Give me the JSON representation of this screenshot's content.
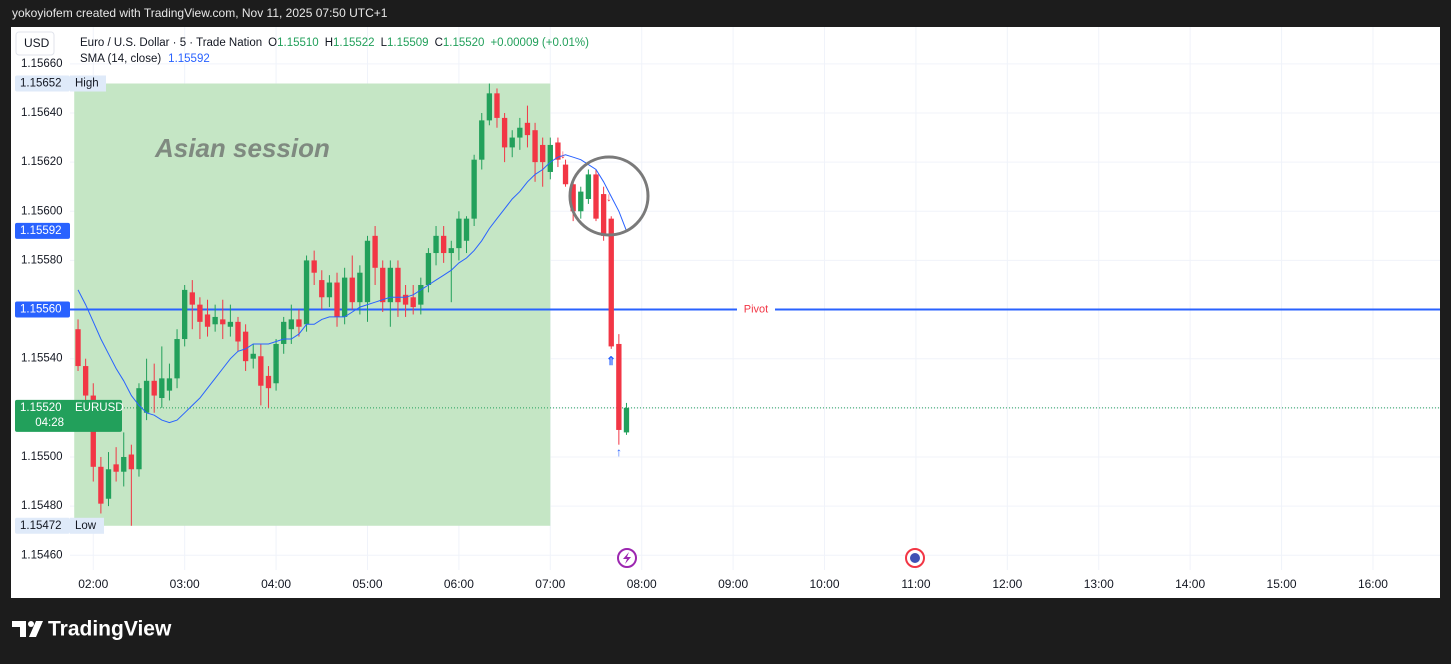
{
  "header": {
    "credit": "yokoyiofem created with TradingView.com, Nov 11, 2025 07:50 UTC+1",
    "logo": "TradingView"
  },
  "chart_data": {
    "type": "candlestick",
    "currency": "USD",
    "title": "Euro / U.S. Dollar · 5 · Trade Nation",
    "legend_values": [
      {
        "key": "O",
        "value": 1.1551,
        "label": "1.15510"
      },
      {
        "key": "H",
        "value": 1.15522,
        "label": "1.15522"
      },
      {
        "key": "L",
        "value": 1.15509,
        "label": "1.15509"
      },
      {
        "key": "C",
        "value": 1.1552,
        "label": "1.15520"
      }
    ],
    "change": "+0.00009 (+0.01%)",
    "up_color": "#22a05b",
    "down_color": "#f23645",
    "x": [
      110,
      115,
      120,
      125,
      130,
      135,
      140,
      145,
      150,
      155,
      160,
      165,
      170,
      175,
      180,
      185,
      190,
      195,
      200,
      205,
      210,
      215,
      220,
      225,
      230,
      235,
      240,
      245,
      250,
      255,
      260,
      265,
      270,
      275,
      280,
      285,
      290,
      295,
      300,
      305,
      310,
      315,
      320,
      325,
      330,
      335,
      340,
      345,
      350,
      355,
      360,
      365,
      370,
      375,
      380,
      385,
      390,
      395,
      400,
      405,
      410,
      415,
      420,
      425,
      430,
      435,
      440,
      445,
      450,
      455,
      460,
      465,
      470
    ],
    "open": [
      1.15552,
      1.15537,
      1.15525,
      1.15496,
      1.15483,
      1.15497,
      1.15494,
      1.15501,
      1.15495,
      1.15518,
      1.15531,
      1.15524,
      1.15527,
      1.15532,
      1.15548,
      1.15567,
      1.15562,
      1.15558,
      1.15554,
      1.15556,
      1.15553,
      1.15555,
      1.15551,
      1.1554,
      1.15541,
      1.15533,
      1.1553,
      1.15546,
      1.15552,
      1.15556,
      1.15554,
      1.1558,
      1.15572,
      1.15565,
      1.15571,
      1.15557,
      1.15573,
      1.15563,
      1.15563,
      1.1559,
      1.15577,
      1.15563,
      1.15577,
      1.15566,
      1.15565,
      1.15562,
      1.1557,
      1.15583,
      1.1559,
      1.15583,
      1.15585,
      1.15588,
      1.15597,
      1.15621,
      1.15637,
      1.15648,
      1.15638,
      1.15626,
      1.1563,
      1.15636,
      1.15633,
      1.15627,
      1.15616,
      1.15628,
      1.15619,
      1.15611,
      1.156,
      1.15605,
      1.15615,
      1.15607,
      1.15597,
      1.15546,
      1.1551
    ],
    "high": [
      1.15556,
      1.1554,
      1.1553,
      1.155,
      1.15502,
      1.15504,
      1.1551,
      1.15505,
      1.1553,
      1.1554,
      1.15538,
      1.15545,
      1.15538,
      1.15552,
      1.1557,
      1.15572,
      1.15565,
      1.15564,
      1.15562,
      1.15564,
      1.15562,
      1.15557,
      1.15554,
      1.15546,
      1.15546,
      1.15537,
      1.15548,
      1.15557,
      1.15562,
      1.1556,
      1.15582,
      1.15584,
      1.15576,
      1.15574,
      1.15575,
      1.15577,
      1.15582,
      1.15578,
      1.1559,
      1.15594,
      1.1558,
      1.1558,
      1.1558,
      1.1557,
      1.1557,
      1.15573,
      1.15585,
      1.15594,
      1.15594,
      1.15588,
      1.156,
      1.15598,
      1.15623,
      1.1564,
      1.15652,
      1.1565,
      1.1564,
      1.15633,
      1.15638,
      1.15643,
      1.15636,
      1.1563,
      1.1563,
      1.1563,
      1.15621,
      1.15612,
      1.1561,
      1.15617,
      1.15617,
      1.1561,
      1.15598,
      1.1555,
      1.15522
    ],
    "low": [
      1.15535,
      1.1552,
      1.1549,
      1.15477,
      1.1548,
      1.1549,
      1.15488,
      1.15472,
      1.15492,
      1.15515,
      1.15518,
      1.1552,
      1.15523,
      1.15528,
      1.15545,
      1.15552,
      1.15548,
      1.15549,
      1.15551,
      1.15548,
      1.15549,
      1.15543,
      1.15535,
      1.15536,
      1.15521,
      1.1552,
      1.15527,
      1.15542,
      1.15546,
      1.15549,
      1.15551,
      1.1557,
      1.1556,
      1.15561,
      1.15553,
      1.15554,
      1.1556,
      1.15558,
      1.15555,
      1.1557,
      1.15559,
      1.15553,
      1.15557,
      1.15557,
      1.15558,
      1.15558,
      1.15567,
      1.15578,
      1.15579,
      1.15563,
      1.1558,
      1.15583,
      1.15594,
      1.15617,
      1.15635,
      1.15634,
      1.1562,
      1.15622,
      1.15625,
      1.15626,
      1.15612,
      1.1561,
      1.15613,
      1.15618,
      1.1561,
      1.15596,
      1.15597,
      1.15603,
      1.15596,
      1.15588,
      1.15544,
      1.15505,
      1.15509
    ],
    "close": [
      1.15537,
      1.15525,
      1.15496,
      1.15481,
      1.15495,
      1.15494,
      1.155,
      1.15495,
      1.15528,
      1.15531,
      1.15525,
      1.15532,
      1.15532,
      1.15548,
      1.15568,
      1.15562,
      1.15555,
      1.15553,
      1.15557,
      1.15554,
      1.15555,
      1.15547,
      1.15539,
      1.15542,
      1.15529,
      1.15528,
      1.15546,
      1.15555,
      1.15556,
      1.15553,
      1.1558,
      1.15575,
      1.15565,
      1.15571,
      1.15557,
      1.15573,
      1.15563,
      1.15575,
      1.15588,
      1.15577,
      1.15563,
      1.15577,
      1.15563,
      1.15562,
      1.15561,
      1.1557,
      1.15583,
      1.1559,
      1.15583,
      1.15585,
      1.15597,
      1.15597,
      1.15621,
      1.15637,
      1.15648,
      1.15638,
      1.15626,
      1.1563,
      1.15634,
      1.15631,
      1.1562,
      1.1562,
      1.15627,
      1.15621,
      1.15611,
      1.156,
      1.15608,
      1.15615,
      1.15597,
      1.1559,
      1.15545,
      1.15511,
      1.1552
    ],
    "indicators": [
      {
        "name": "SMA (14, close)",
        "color": "#2962ff",
        "values": [
          1.15568,
          1.15562,
          1.15555,
          1.15548,
          1.15542,
          1.15536,
          1.15531,
          1.15525,
          1.15521,
          1.15518,
          1.15517,
          1.15515,
          1.15514,
          1.15515,
          1.15518,
          1.15521,
          1.15524,
          1.15528,
          1.15532,
          1.15536,
          1.1554,
          1.15543,
          1.15544,
          1.15546,
          1.15546,
          1.15546,
          1.15547,
          1.15548,
          1.15548,
          1.1555,
          1.15554,
          1.15554,
          1.15556,
          1.15557,
          1.15557,
          1.15557,
          1.15559,
          1.15561,
          1.15562,
          1.15563,
          1.15564,
          1.15565,
          1.15565,
          1.15565,
          1.15566,
          1.15568,
          1.1557,
          1.15572,
          1.15574,
          1.15576,
          1.15579,
          1.15581,
          1.15584,
          1.15588,
          1.15593,
          1.15597,
          1.15601,
          1.15605,
          1.15608,
          1.15612,
          1.15615,
          1.15617,
          1.1562,
          1.15622,
          1.15623,
          1.15622,
          1.15621,
          1.15619,
          1.15617,
          1.15612,
          1.15606,
          1.156,
          1.15592
        ],
        "last": {
          "value": 1.15592,
          "label": "1.15592"
        }
      }
    ],
    "current_price": {
      "value": 1.1552,
      "label": "1.15520",
      "symbol": "EURUSD",
      "countdown": "04:28"
    },
    "session": {
      "label": "Asian session",
      "x": [
        107.5,
        420
      ],
      "color": "#c5e6c5",
      "high": {
        "value": 1.15652,
        "label": "1.15652",
        "text": "High"
      },
      "low": {
        "value": 1.15472,
        "label": "1.15472",
        "text": "Low"
      }
    },
    "pivot": {
      "text": "Pivot",
      "value": 1.1556,
      "label": "1.15560",
      "color": "#2962ff"
    },
    "ylim": [
      1.15454,
      1.15675
    ],
    "yticks": [
      {
        "value": 1.1546,
        "label": "1.15460"
      },
      {
        "value": 1.1548,
        "label": "1.15480"
      },
      {
        "value": 1.155,
        "label": "1.15500"
      },
      {
        "value": 1.1552,
        "label": "1.15520"
      },
      {
        "value": 1.1554,
        "label": "1.15540"
      },
      {
        "value": 1.1556,
        "label": "1.15560"
      },
      {
        "value": 1.1558,
        "label": "1.15580"
      },
      {
        "value": 1.156,
        "label": "1.15600"
      },
      {
        "value": 1.1562,
        "label": "1.15620"
      },
      {
        "value": 1.1564,
        "label": "1.15640"
      },
      {
        "value": 1.1566,
        "label": "1.15660"
      }
    ],
    "xlim": [
      66,
      1004
    ],
    "xticks": [
      {
        "value": 120,
        "label": "02:00"
      },
      {
        "value": 180,
        "label": "03:00"
      },
      {
        "value": 240,
        "label": "04:00"
      },
      {
        "value": 300,
        "label": "05:00"
      },
      {
        "value": 360,
        "label": "06:00"
      },
      {
        "value": 420,
        "label": "07:00"
      },
      {
        "value": 480,
        "label": "08:00"
      },
      {
        "value": 540,
        "label": "09:00"
      },
      {
        "value": 600,
        "label": "10:00"
      },
      {
        "value": 660,
        "label": "11:00"
      },
      {
        "value": 720,
        "label": "12:00"
      },
      {
        "value": 780,
        "label": "13:00"
      },
      {
        "value": 840,
        "label": "14:00"
      },
      {
        "value": 900,
        "label": "15:00"
      },
      {
        "value": 960,
        "label": "16:00"
      }
    ],
    "grid": true
  }
}
